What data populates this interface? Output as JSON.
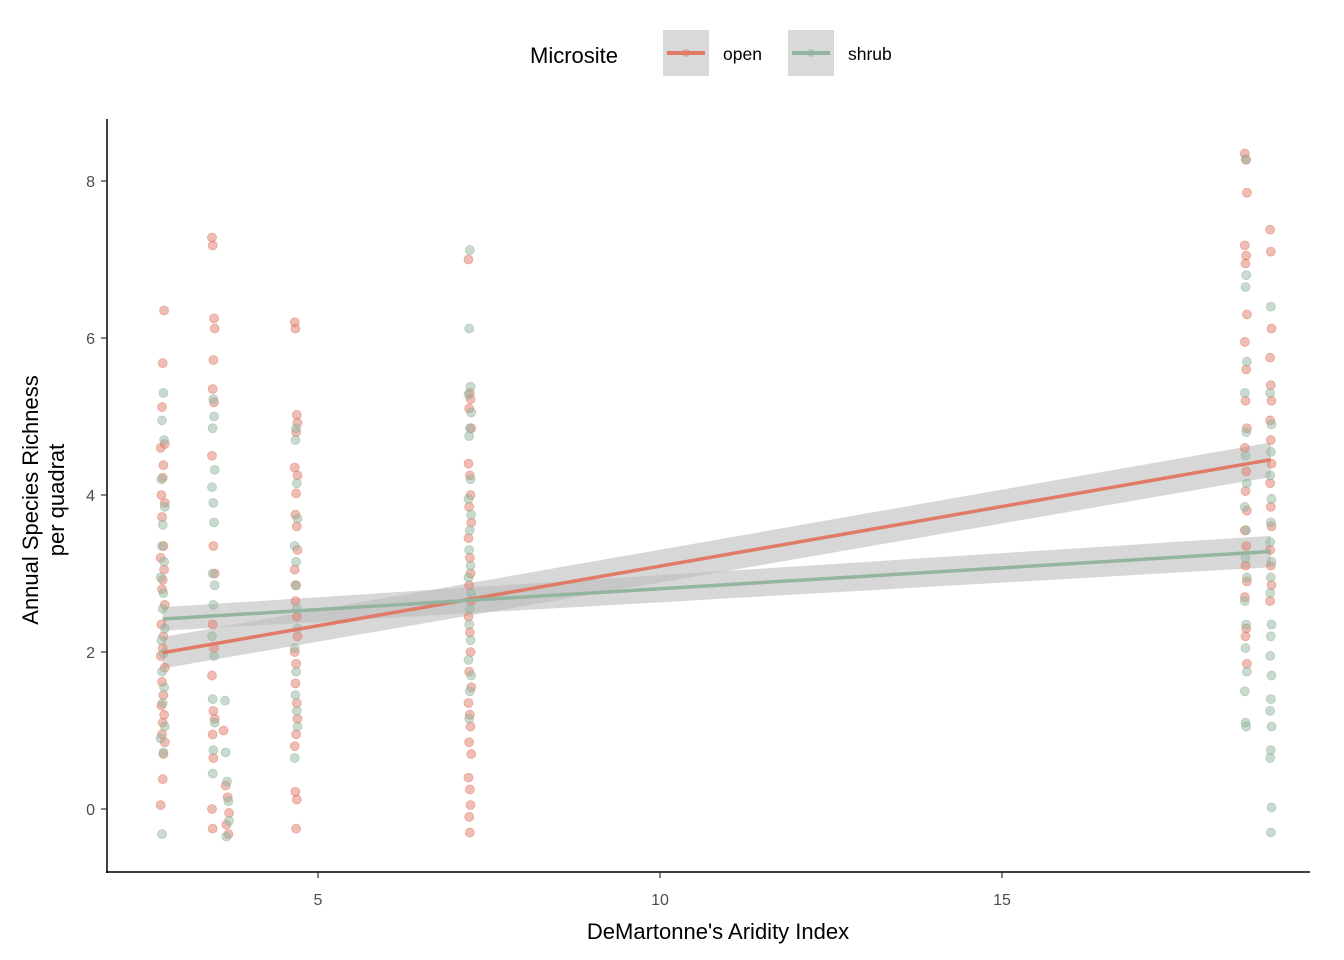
{
  "chart_data": {
    "type": "scatter",
    "title": "",
    "xlabel": "DeMartonne's Aridity Index",
    "ylabel_lines": [
      "Annual Species Richness",
      "per quadrat"
    ],
    "xlim": [
      2.0,
      19.5
    ],
    "ylim": [
      -0.8,
      8.8
    ],
    "x_ticks": [
      5,
      10,
      15
    ],
    "y_ticks": [
      0,
      2,
      4,
      6,
      8
    ],
    "grid": false,
    "legend": {
      "title": "Microsite",
      "placement": "top",
      "entries": [
        "open",
        "shrub"
      ]
    },
    "colors": {
      "open": "#e07b67",
      "shrub": "#93b59f",
      "ribbon": "#cccccc",
      "axis": "#000000"
    },
    "series": [
      {
        "name": "open",
        "trend": {
          "method": "lm",
          "x": [
            2.73,
            18.93
          ],
          "y": [
            1.99,
            4.45
          ],
          "ci_halfwidth": [
            0.2,
            0.22
          ]
        },
        "points": [
          [
            2.75,
            6.35
          ],
          [
            2.73,
            5.68
          ],
          [
            2.72,
            5.12
          ],
          [
            2.76,
            4.65
          ],
          [
            2.7,
            4.6
          ],
          [
            2.74,
            4.38
          ],
          [
            2.73,
            4.22
          ],
          [
            2.71,
            4.0
          ],
          [
            2.76,
            3.9
          ],
          [
            2.72,
            3.72
          ],
          [
            2.74,
            3.35
          ],
          [
            2.7,
            3.2
          ],
          [
            2.75,
            3.05
          ],
          [
            2.73,
            2.92
          ],
          [
            2.72,
            2.8
          ],
          [
            2.76,
            2.6
          ],
          [
            2.71,
            2.35
          ],
          [
            2.74,
            2.2
          ],
          [
            2.73,
            2.05
          ],
          [
            2.7,
            1.95
          ],
          [
            2.76,
            1.8
          ],
          [
            2.72,
            1.62
          ],
          [
            2.74,
            1.45
          ],
          [
            2.71,
            1.32
          ],
          [
            2.75,
            1.2
          ],
          [
            2.73,
            1.1
          ],
          [
            2.72,
            0.95
          ],
          [
            2.76,
            0.85
          ],
          [
            2.74,
            0.7
          ],
          [
            2.73,
            0.38
          ],
          [
            2.7,
            0.05
          ],
          [
            3.45,
            7.28
          ],
          [
            3.46,
            7.18
          ],
          [
            3.48,
            6.25
          ],
          [
            3.49,
            6.12
          ],
          [
            3.47,
            5.72
          ],
          [
            3.46,
            5.35
          ],
          [
            3.48,
            5.18
          ],
          [
            3.45,
            4.5
          ],
          [
            3.47,
            3.35
          ],
          [
            3.49,
            3.0
          ],
          [
            3.46,
            2.35
          ],
          [
            3.48,
            2.05
          ],
          [
            3.45,
            1.7
          ],
          [
            3.47,
            1.25
          ],
          [
            3.49,
            1.15
          ],
          [
            3.46,
            0.95
          ],
          [
            3.47,
            0.65
          ],
          [
            3.45,
            0.0
          ],
          [
            3.46,
            -0.25
          ],
          [
            3.62,
            1.0
          ],
          [
            3.65,
            0.3
          ],
          [
            3.68,
            0.15
          ],
          [
            3.7,
            -0.05
          ],
          [
            3.66,
            -0.2
          ],
          [
            3.69,
            -0.32
          ],
          [
            4.66,
            6.2
          ],
          [
            4.67,
            6.12
          ],
          [
            4.69,
            5.02
          ],
          [
            4.7,
            4.92
          ],
          [
            4.68,
            4.8
          ],
          [
            4.66,
            4.35
          ],
          [
            4.7,
            4.25
          ],
          [
            4.68,
            4.02
          ],
          [
            4.67,
            3.75
          ],
          [
            4.69,
            3.6
          ],
          [
            4.7,
            3.3
          ],
          [
            4.66,
            3.05
          ],
          [
            4.68,
            2.85
          ],
          [
            4.67,
            2.65
          ],
          [
            4.69,
            2.45
          ],
          [
            4.7,
            2.2
          ],
          [
            4.66,
            2.0
          ],
          [
            4.68,
            1.85
          ],
          [
            4.67,
            1.6
          ],
          [
            4.69,
            1.35
          ],
          [
            4.7,
            1.15
          ],
          [
            4.68,
            0.95
          ],
          [
            4.66,
            0.8
          ],
          [
            4.67,
            0.22
          ],
          [
            4.69,
            0.12
          ],
          [
            4.68,
            -0.25
          ],
          [
            7.2,
            7.0
          ],
          [
            7.22,
            5.3
          ],
          [
            7.23,
            5.22
          ],
          [
            7.21,
            5.1
          ],
          [
            7.24,
            4.85
          ],
          [
            7.2,
            4.4
          ],
          [
            7.22,
            4.25
          ],
          [
            7.23,
            4.0
          ],
          [
            7.21,
            3.85
          ],
          [
            7.24,
            3.65
          ],
          [
            7.2,
            3.45
          ],
          [
            7.22,
            3.2
          ],
          [
            7.23,
            3.0
          ],
          [
            7.21,
            2.85
          ],
          [
            7.24,
            2.65
          ],
          [
            7.2,
            2.45
          ],
          [
            7.22,
            2.25
          ],
          [
            7.23,
            2.0
          ],
          [
            7.21,
            1.75
          ],
          [
            7.24,
            1.55
          ],
          [
            7.2,
            1.35
          ],
          [
            7.22,
            1.2
          ],
          [
            7.23,
            1.05
          ],
          [
            7.21,
            0.85
          ],
          [
            7.24,
            0.7
          ],
          [
            7.2,
            0.4
          ],
          [
            7.22,
            0.25
          ],
          [
            7.23,
            0.05
          ],
          [
            7.21,
            -0.1
          ],
          [
            7.22,
            -0.3
          ],
          [
            18.55,
            8.35
          ],
          [
            18.57,
            8.27
          ],
          [
            18.58,
            7.85
          ],
          [
            18.55,
            7.18
          ],
          [
            18.57,
            7.05
          ],
          [
            18.56,
            6.95
          ],
          [
            18.58,
            6.3
          ],
          [
            18.55,
            5.95
          ],
          [
            18.57,
            5.6
          ],
          [
            18.56,
            5.2
          ],
          [
            18.58,
            4.85
          ],
          [
            18.55,
            4.6
          ],
          [
            18.57,
            4.3
          ],
          [
            18.56,
            4.05
          ],
          [
            18.58,
            3.8
          ],
          [
            18.55,
            3.55
          ],
          [
            18.57,
            3.35
          ],
          [
            18.56,
            3.1
          ],
          [
            18.58,
            2.9
          ],
          [
            18.55,
            2.7
          ],
          [
            18.57,
            2.3
          ],
          [
            18.56,
            2.2
          ],
          [
            18.58,
            1.85
          ],
          [
            18.92,
            7.38
          ],
          [
            18.93,
            7.1
          ],
          [
            18.94,
            6.12
          ],
          [
            18.92,
            5.75
          ],
          [
            18.93,
            5.4
          ],
          [
            18.94,
            5.2
          ],
          [
            18.92,
            4.95
          ],
          [
            18.93,
            4.7
          ],
          [
            18.94,
            4.4
          ],
          [
            18.92,
            4.15
          ],
          [
            18.93,
            3.85
          ],
          [
            18.94,
            3.6
          ],
          [
            18.92,
            3.3
          ],
          [
            18.93,
            3.1
          ],
          [
            18.94,
            2.85
          ],
          [
            18.92,
            2.65
          ]
        ]
      },
      {
        "name": "shrub",
        "trend": {
          "method": "lm",
          "x": [
            2.73,
            18.93
          ],
          "y": [
            2.42,
            3.28
          ],
          "ci_halfwidth": [
            0.15,
            0.2
          ]
        },
        "points": [
          [
            2.74,
            5.3
          ],
          [
            2.72,
            4.95
          ],
          [
            2.75,
            4.7
          ],
          [
            2.71,
            4.2
          ],
          [
            2.76,
            3.85
          ],
          [
            2.73,
            3.62
          ],
          [
            2.72,
            3.35
          ],
          [
            2.75,
            3.15
          ],
          [
            2.7,
            2.95
          ],
          [
            2.74,
            2.75
          ],
          [
            2.73,
            2.55
          ],
          [
            2.76,
            2.3
          ],
          [
            2.71,
            2.15
          ],
          [
            2.74,
            1.98
          ],
          [
            2.72,
            1.75
          ],
          [
            2.75,
            1.55
          ],
          [
            2.73,
            1.35
          ],
          [
            2.76,
            1.05
          ],
          [
            2.7,
            0.9
          ],
          [
            2.74,
            0.72
          ],
          [
            2.72,
            -0.32
          ],
          [
            3.47,
            5.22
          ],
          [
            3.48,
            5.0
          ],
          [
            3.46,
            4.85
          ],
          [
            3.49,
            4.32
          ],
          [
            3.45,
            4.1
          ],
          [
            3.47,
            3.9
          ],
          [
            3.48,
            3.65
          ],
          [
            3.46,
            3.0
          ],
          [
            3.49,
            2.85
          ],
          [
            3.47,
            2.6
          ],
          [
            3.45,
            2.2
          ],
          [
            3.48,
            1.95
          ],
          [
            3.46,
            1.4
          ],
          [
            3.49,
            1.1
          ],
          [
            3.47,
            0.75
          ],
          [
            3.46,
            0.45
          ],
          [
            3.64,
            1.38
          ],
          [
            3.65,
            0.72
          ],
          [
            3.67,
            0.35
          ],
          [
            3.69,
            0.1
          ],
          [
            3.7,
            -0.15
          ],
          [
            3.66,
            -0.35
          ],
          [
            4.68,
            4.85
          ],
          [
            4.67,
            4.7
          ],
          [
            4.69,
            4.15
          ],
          [
            4.7,
            3.7
          ],
          [
            4.66,
            3.35
          ],
          [
            4.68,
            3.15
          ],
          [
            4.67,
            2.85
          ],
          [
            4.69,
            2.55
          ],
          [
            4.7,
            2.3
          ],
          [
            4.66,
            2.05
          ],
          [
            4.68,
            1.75
          ],
          [
            4.67,
            1.45
          ],
          [
            4.69,
            1.25
          ],
          [
            4.7,
            1.05
          ],
          [
            4.66,
            0.65
          ],
          [
            7.22,
            7.12
          ],
          [
            7.21,
            6.12
          ],
          [
            7.23,
            5.38
          ],
          [
            7.2,
            5.28
          ],
          [
            7.24,
            5.05
          ],
          [
            7.22,
            4.85
          ],
          [
            7.21,
            4.75
          ],
          [
            7.23,
            4.2
          ],
          [
            7.2,
            3.95
          ],
          [
            7.24,
            3.75
          ],
          [
            7.22,
            3.55
          ],
          [
            7.21,
            3.3
          ],
          [
            7.23,
            3.1
          ],
          [
            7.2,
            2.95
          ],
          [
            7.24,
            2.75
          ],
          [
            7.22,
            2.55
          ],
          [
            7.21,
            2.35
          ],
          [
            7.23,
            2.15
          ],
          [
            7.2,
            1.9
          ],
          [
            7.24,
            1.7
          ],
          [
            7.22,
            1.5
          ],
          [
            7.21,
            1.15
          ],
          [
            18.56,
            8.28
          ],
          [
            18.57,
            6.8
          ],
          [
            18.56,
            6.65
          ],
          [
            18.58,
            5.7
          ],
          [
            18.55,
            5.3
          ],
          [
            18.57,
            4.8
          ],
          [
            18.56,
            4.5
          ],
          [
            18.58,
            4.15
          ],
          [
            18.55,
            3.85
          ],
          [
            18.57,
            3.55
          ],
          [
            18.56,
            3.2
          ],
          [
            18.58,
            2.95
          ],
          [
            18.55,
            2.65
          ],
          [
            18.57,
            2.35
          ],
          [
            18.56,
            2.05
          ],
          [
            18.58,
            1.75
          ],
          [
            18.55,
            1.5
          ],
          [
            18.56,
            1.1
          ],
          [
            18.57,
            1.05
          ],
          [
            18.93,
            6.4
          ],
          [
            18.92,
            5.3
          ],
          [
            18.94,
            4.9
          ],
          [
            18.93,
            4.55
          ],
          [
            18.92,
            4.25
          ],
          [
            18.94,
            3.95
          ],
          [
            18.93,
            3.65
          ],
          [
            18.92,
            3.4
          ],
          [
            18.94,
            3.15
          ],
          [
            18.93,
            2.95
          ],
          [
            18.92,
            2.75
          ],
          [
            18.94,
            2.35
          ],
          [
            18.93,
            2.2
          ],
          [
            18.92,
            1.95
          ],
          [
            18.94,
            1.7
          ],
          [
            18.93,
            1.4
          ],
          [
            18.92,
            1.25
          ],
          [
            18.94,
            1.05
          ],
          [
            18.93,
            0.75
          ],
          [
            18.92,
            0.65
          ],
          [
            18.94,
            0.02
          ],
          [
            18.93,
            -0.3
          ]
        ]
      }
    ]
  }
}
